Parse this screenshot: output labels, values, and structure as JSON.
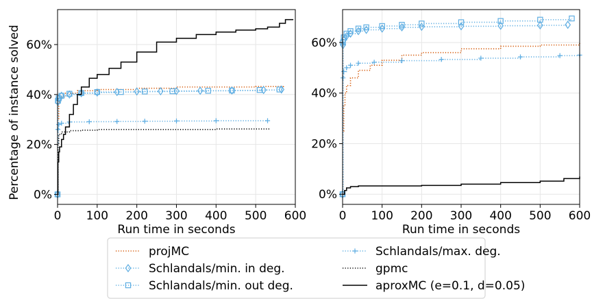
{
  "chart_data": [
    {
      "type": "line",
      "title": "",
      "xlabel": "Run time in seconds",
      "ylabel": "Percentage of instance solved",
      "xlim": [
        0,
        600
      ],
      "ylim": [
        -4,
        74
      ],
      "xticks": [
        0,
        100,
        200,
        300,
        400,
        500,
        600
      ],
      "xtick_labels": [
        "0",
        "100",
        "200",
        "300",
        "400",
        "500",
        "600"
      ],
      "yticks": [
        0,
        20,
        40,
        60
      ],
      "ytick_labels": [
        "0%",
        "20%",
        "40%",
        "60%"
      ],
      "grid": true,
      "series": [
        {
          "name": "projMC",
          "color": "#d35400",
          "style": "dotted",
          "marker": "none",
          "x": [
            0,
            1,
            3,
            8,
            20,
            50,
            100,
            200,
            300,
            400,
            500,
            570
          ],
          "y": [
            0,
            30,
            37,
            39,
            40.5,
            41.5,
            42,
            42.5,
            43,
            43,
            43.2,
            43.5
          ]
        },
        {
          "name": "Schlandals/min. in deg.",
          "color": "#5dade2",
          "style": "dotted",
          "marker": "diamond",
          "x": [
            0,
            1,
            3,
            10,
            30,
            60,
            100,
            150,
            200,
            260,
            300,
            360,
            440,
            520,
            565
          ],
          "y": [
            0,
            37,
            38.5,
            39.5,
            40,
            40.5,
            40.8,
            41,
            41.2,
            41.3,
            41.4,
            41.5,
            41.6,
            41.8,
            42
          ]
        },
        {
          "name": "Schlandals/min. out deg.",
          "color": "#5dade2",
          "style": "dotted",
          "marker": "square",
          "x": [
            0,
            1,
            3,
            10,
            30,
            60,
            100,
            160,
            220,
            290,
            380,
            440,
            510,
            560
          ],
          "y": [
            0,
            37.5,
            38.5,
            39.5,
            40.3,
            40.6,
            41,
            41,
            41.2,
            41.3,
            41.5,
            41.6,
            41.8,
            42
          ]
        },
        {
          "name": "Schlandals/max. deg.",
          "color": "#5dade2",
          "style": "dotted",
          "marker": "plus",
          "x": [
            0,
            1,
            3,
            10,
            30,
            80,
            150,
            220,
            300,
            400,
            530
          ],
          "y": [
            0,
            26,
            28,
            28.5,
            29,
            29.1,
            29.2,
            29.3,
            29.4,
            29.5,
            29.5
          ]
        },
        {
          "name": "gpmc",
          "color": "#000000",
          "style": "dotted",
          "marker": "none",
          "x": [
            0,
            1,
            3,
            10,
            30,
            60,
            100,
            200,
            300,
            400,
            500,
            535
          ],
          "y": [
            0,
            20,
            24,
            25,
            25.5,
            25.7,
            26,
            26,
            26,
            26.2,
            26.2,
            26.2
          ]
        },
        {
          "name": "aproxMC (e=0.1, d=0.05)",
          "color": "#000000",
          "style": "solid",
          "marker": "none",
          "x": [
            0,
            1,
            3,
            5,
            10,
            15,
            20,
            30,
            40,
            50,
            60,
            80,
            100,
            130,
            160,
            200,
            250,
            300,
            350,
            400,
            450,
            500,
            530,
            560,
            575,
            595
          ],
          "y": [
            0,
            13,
            17,
            19,
            22,
            24,
            27,
            32,
            36,
            40,
            43,
            46.5,
            48,
            50.5,
            53,
            57,
            61,
            62.5,
            64,
            65,
            65.8,
            66.3,
            67,
            68.5,
            70,
            70
          ]
        }
      ]
    },
    {
      "type": "line",
      "title": "",
      "xlabel": "Run time in seconds",
      "ylabel": "",
      "xlim": [
        0,
        600
      ],
      "ylim": [
        -4,
        73
      ],
      "xticks": [
        0,
        100,
        200,
        300,
        400,
        500,
        600
      ],
      "xtick_labels": [
        "0",
        "100",
        "200",
        "300",
        "400",
        "500",
        "600"
      ],
      "yticks": [
        0,
        20,
        40,
        60
      ],
      "ytick_labels": [
        "0%",
        "20%",
        "40%",
        "60%"
      ],
      "grid": true,
      "series": [
        {
          "name": "projMC",
          "color": "#d35400",
          "style": "dotted",
          "marker": "none",
          "x": [
            0,
            1,
            3,
            6,
            10,
            20,
            40,
            70,
            100,
            150,
            200,
            300,
            400,
            500,
            600
          ],
          "y": [
            0,
            25,
            35,
            40,
            43,
            46,
            49,
            51,
            53,
            55,
            56,
            57.5,
            58.5,
            59,
            60
          ]
        },
        {
          "name": "Schlandals/min. in deg.",
          "color": "#5dade2",
          "style": "dotted",
          "marker": "diamond",
          "x": [
            0,
            1,
            3,
            10,
            20,
            40,
            60,
            100,
            150,
            200,
            300,
            400,
            500,
            570
          ],
          "y": [
            0,
            59,
            61,
            62.5,
            63.5,
            64.5,
            65,
            65.5,
            66,
            66.2,
            66.4,
            66.6,
            66.8,
            67
          ]
        },
        {
          "name": "Schlandals/min. out deg.",
          "color": "#5dade2",
          "style": "dotted",
          "marker": "square",
          "x": [
            0,
            1,
            3,
            10,
            20,
            40,
            60,
            100,
            150,
            200,
            300,
            400,
            500,
            580
          ],
          "y": [
            0,
            60,
            62,
            63.5,
            64.5,
            65.5,
            66,
            66.5,
            67,
            67.5,
            68,
            68.5,
            69,
            69.5
          ]
        },
        {
          "name": "Schlandals/max. deg.",
          "color": "#5dade2",
          "style": "dotted",
          "marker": "plus",
          "x": [
            0,
            1,
            3,
            10,
            20,
            40,
            80,
            150,
            250,
            350,
            450,
            550,
            600
          ],
          "y": [
            0,
            46,
            48.5,
            50,
            51,
            51.8,
            52.2,
            52.8,
            53.3,
            53.8,
            54.3,
            54.8,
            55
          ]
        },
        {
          "name": "aproxMC (e=0.1, d=0.05)",
          "color": "#000000",
          "style": "solid",
          "marker": "none",
          "x": [
            0,
            5,
            10,
            20,
            40,
            100,
            200,
            280,
            300,
            400,
            500,
            560,
            600
          ],
          "y": [
            0,
            1.5,
            2.5,
            3,
            3.3,
            3.3,
            3.5,
            3.5,
            4.0,
            4.6,
            5.2,
            6.2,
            7
          ]
        }
      ]
    }
  ],
  "legend": [
    {
      "label": "projMC",
      "color": "#d35400",
      "style": "dotted",
      "marker": "none"
    },
    {
      "label": "Schlandals/max. deg.",
      "color": "#5dade2",
      "style": "dotted",
      "marker": "plus"
    },
    {
      "label": "Schlandals/min. in deg.",
      "color": "#5dade2",
      "style": "dotted",
      "marker": "diamond"
    },
    {
      "label": "gpmc",
      "color": "#000000",
      "style": "dotted",
      "marker": "none"
    },
    {
      "label": "Schlandals/min. out deg.",
      "color": "#5dade2",
      "style": "dotted",
      "marker": "square"
    },
    {
      "label": "aproxMC (e=0.1, d=0.05)",
      "color": "#000000",
      "style": "solid",
      "marker": "none"
    }
  ],
  "legend_placement": "bottom-center",
  "grid_color": "#e6e6e6"
}
